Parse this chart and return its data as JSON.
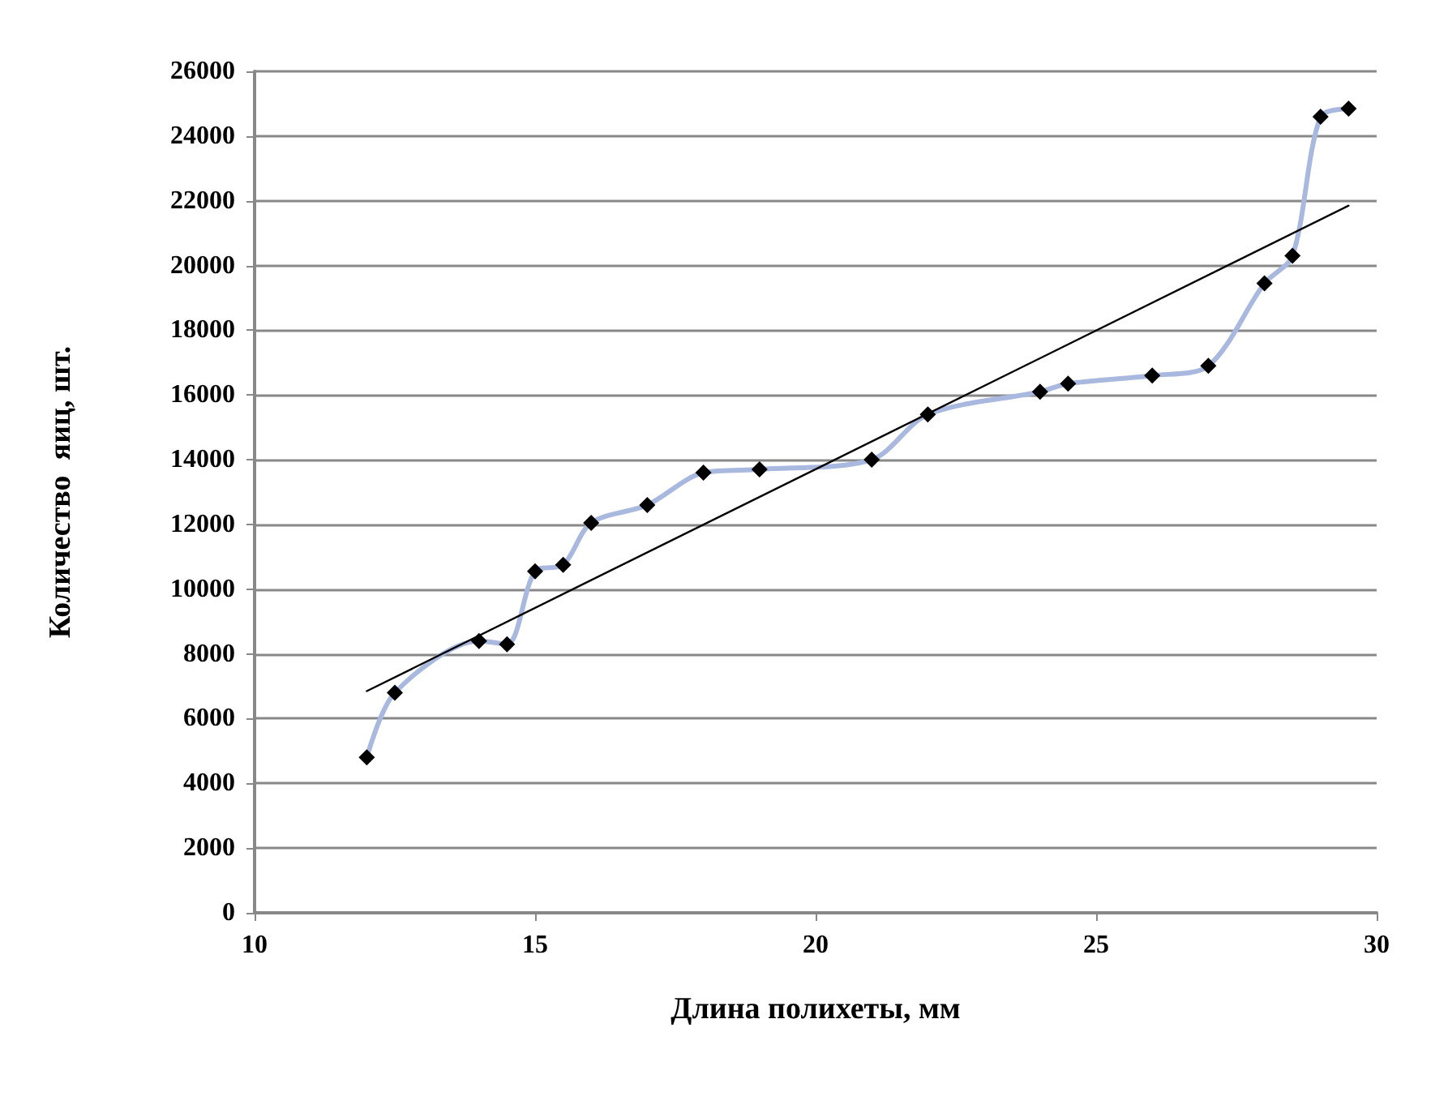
{
  "chart_data": {
    "type": "line",
    "xlabel": "Длина полихеты, мм",
    "ylabel": "Количество  яиц, шт.",
    "xlim": [
      10,
      30
    ],
    "xticks": [
      10,
      15,
      20,
      25,
      30
    ],
    "ylim": [
      0,
      26000
    ],
    "yticks": [
      0,
      2000,
      4000,
      6000,
      8000,
      10000,
      12000,
      14000,
      16000,
      18000,
      20000,
      22000,
      24000,
      26000
    ],
    "grid": "y",
    "marker": "diamond",
    "series": [
      {
        "color": "#a9b8de",
        "x": [
          12,
          12.5,
          14,
          14.5,
          15,
          15.5,
          16,
          17,
          18,
          19,
          21,
          22,
          24,
          24.5,
          26,
          27,
          28,
          28.5,
          29,
          29.5
        ],
        "values": [
          4800,
          6800,
          8400,
          8300,
          10550,
          10750,
          12050,
          12600,
          13600,
          13700,
          14000,
          15400,
          16100,
          16350,
          16600,
          16900,
          19450,
          20300,
          24600,
          24850
        ]
      },
      {
        "type": "line",
        "color": "#000000",
        "marker": "none",
        "x": [
          12,
          29.5
        ],
        "values": [
          6850,
          21850
        ]
      }
    ]
  }
}
